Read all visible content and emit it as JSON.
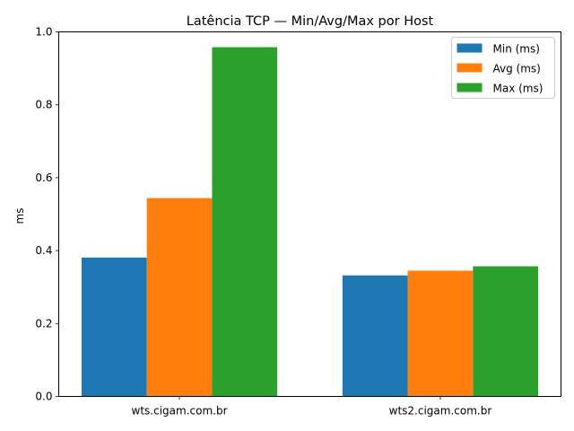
{
  "chart_data": {
    "type": "bar",
    "title": "Latência TCP — Min/Avg/Max por Host",
    "xlabel": "",
    "ylabel": "ms",
    "ylim": [
      0,
      1.0
    ],
    "yticks": [
      "0.0",
      "0.2",
      "0.4",
      "0.6",
      "0.8",
      "1.0"
    ],
    "categories": [
      "wts.cigam.com.br",
      "wts2.cigam.com.br"
    ],
    "series": [
      {
        "name": "Min (ms)",
        "color": "#1f77b4",
        "values": [
          0.381,
          0.332
        ]
      },
      {
        "name": "Avg (ms)",
        "color": "#ff7f0e",
        "values": [
          0.544,
          0.345
        ]
      },
      {
        "name": "Max (ms)",
        "color": "#2ca02c",
        "values": [
          0.958,
          0.357
        ]
      }
    ],
    "grid": false,
    "legend": "top-right"
  }
}
